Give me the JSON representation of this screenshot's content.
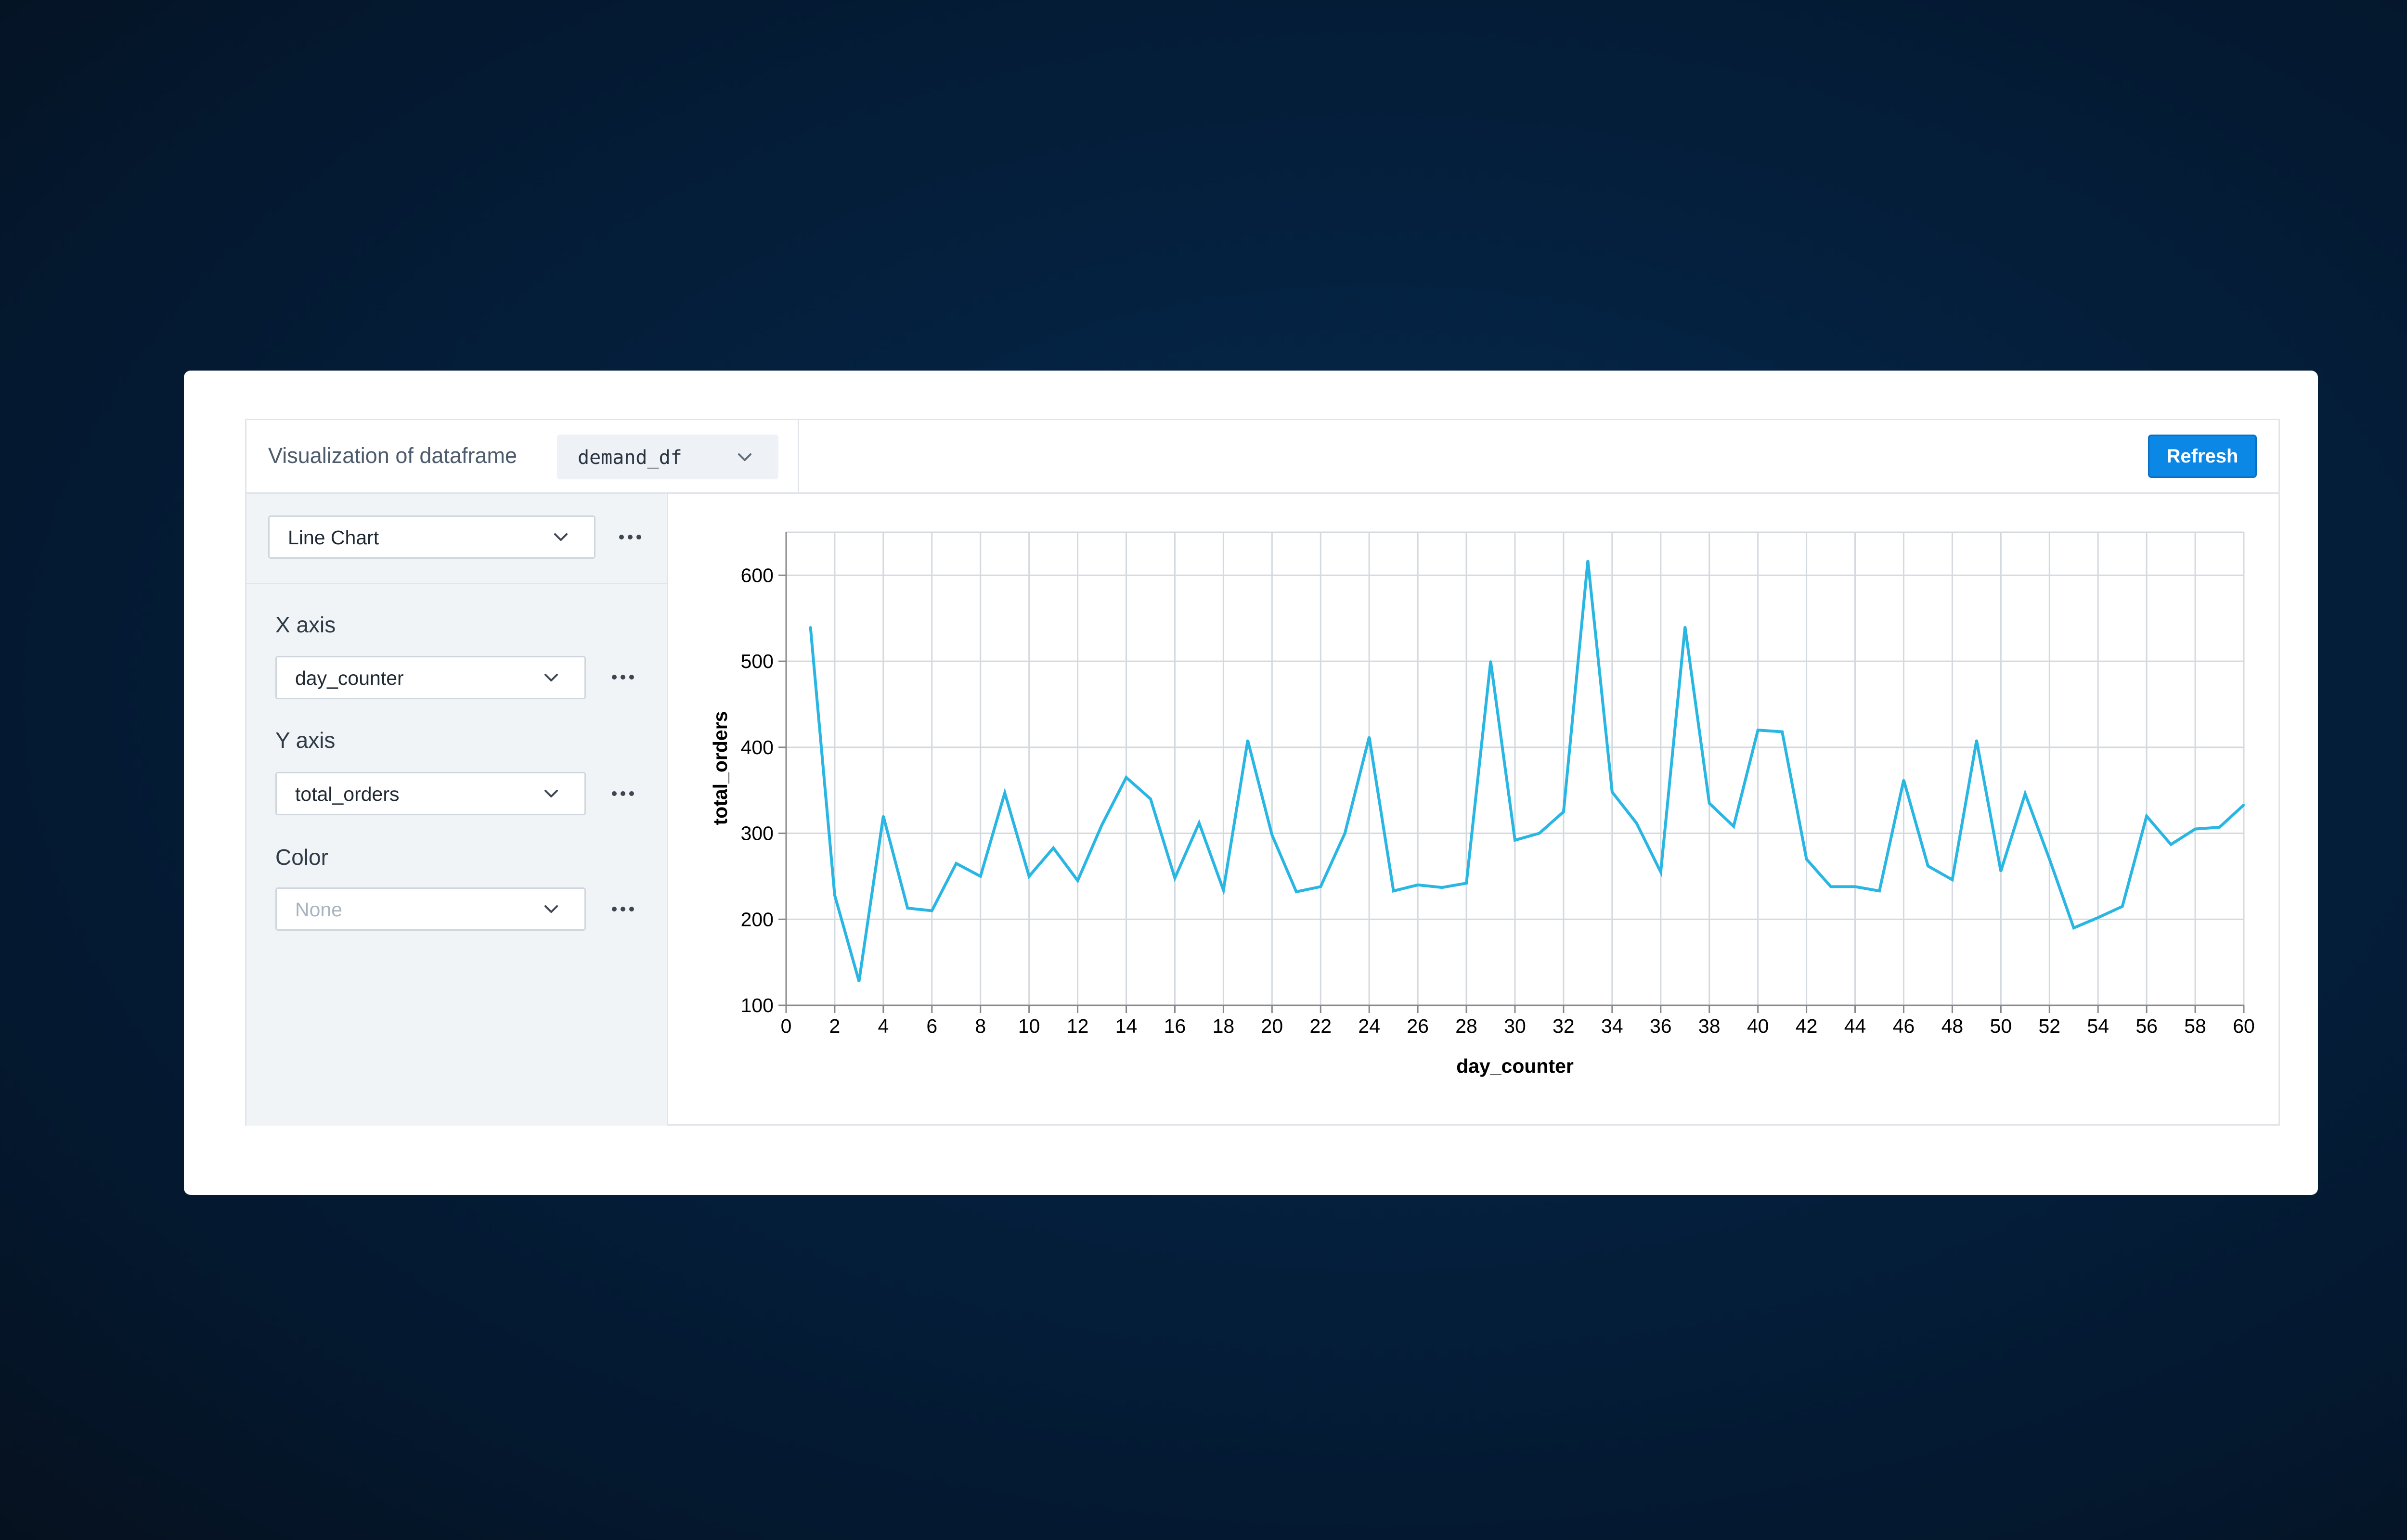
{
  "header": {
    "viz_label": "Visualization of dataframe",
    "dataframe": "demand_df",
    "refresh_label": "Refresh"
  },
  "sidebar": {
    "chart_type": "Line Chart",
    "x_axis_label": "X axis",
    "x_axis_value": "day_counter",
    "y_axis_label": "Y axis",
    "y_axis_value": "total_orders",
    "color_label": "Color",
    "color_value": "None"
  },
  "colors": {
    "accent": "#0b87e6",
    "line": "#29b6e3",
    "grid": "#d4d9df"
  },
  "chart_data": {
    "type": "line",
    "xlabel": "day_counter",
    "ylabel": "total_orders",
    "xlim": [
      0,
      60
    ],
    "ylim": [
      100,
      650
    ],
    "xticks": [
      0,
      2,
      4,
      6,
      8,
      10,
      12,
      14,
      16,
      18,
      20,
      22,
      24,
      26,
      28,
      30,
      32,
      34,
      36,
      38,
      40,
      42,
      44,
      46,
      48,
      50,
      52,
      54,
      56,
      58,
      60
    ],
    "yticks": [
      100,
      200,
      300,
      400,
      500,
      600
    ],
    "grid": true,
    "x": [
      1,
      2,
      3,
      4,
      5,
      6,
      7,
      8,
      9,
      10,
      11,
      12,
      13,
      14,
      15,
      16,
      17,
      18,
      19,
      20,
      21,
      22,
      23,
      24,
      25,
      26,
      27,
      28,
      29,
      30,
      31,
      32,
      33,
      34,
      35,
      36,
      37,
      38,
      39,
      40,
      41,
      42,
      43,
      44,
      45,
      46,
      47,
      48,
      49,
      50,
      51,
      52,
      53,
      54,
      55,
      56,
      57,
      58,
      59,
      60
    ],
    "values": [
      540,
      228,
      128,
      320,
      213,
      210,
      265,
      250,
      347,
      250,
      283,
      245,
      310,
      365,
      340,
      248,
      312,
      234,
      408,
      298,
      232,
      238,
      300,
      412,
      233,
      240,
      237,
      242,
      500,
      292,
      300,
      325,
      617,
      348,
      312,
      255,
      540,
      335,
      308,
      420,
      418,
      270,
      238,
      238,
      233,
      362,
      262,
      246,
      408,
      256,
      346,
      270,
      190,
      202,
      215,
      320,
      287,
      305,
      307,
      333
    ]
  }
}
